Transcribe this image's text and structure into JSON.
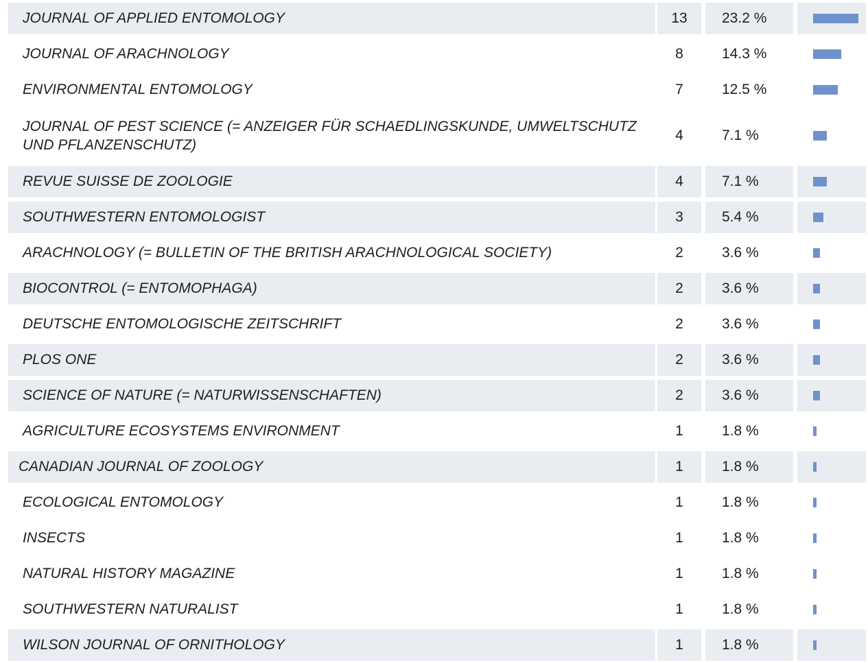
{
  "table": {
    "rows": [
      {
        "journal": "JOURNAL OF APPLIED ENTOMOLOGY",
        "count": 13,
        "percent": "23.2 %"
      },
      {
        "journal": "JOURNAL OF ARACHNOLOGY",
        "count": 8,
        "percent": "14.3 %"
      },
      {
        "journal": "ENVIRONMENTAL ENTOMOLOGY",
        "count": 7,
        "percent": "12.5 %"
      },
      {
        "journal": "JOURNAL OF PEST SCIENCE  (= ANZEIGER FÜR SCHAEDLINGSKUNDE, UMWELTSCHUTZ UND PFLANZENSCHUTZ)",
        "count": 4,
        "percent": "7.1 %"
      },
      {
        "journal": "REVUE SUISSE DE ZOOLOGIE",
        "count": 4,
        "percent": "7.1 %"
      },
      {
        "journal": "SOUTHWESTERN ENTOMOLOGIST",
        "count": 3,
        "percent": "5.4 %"
      },
      {
        "journal": "ARACHNOLOGY  (= BULLETIN OF THE BRITISH ARACHNOLOGICAL SOCIETY)",
        "count": 2,
        "percent": "3.6 %"
      },
      {
        "journal": "BIOCONTROL  (= ENTOMOPHAGA)",
        "count": 2,
        "percent": "3.6 %"
      },
      {
        "journal": "DEUTSCHE ENTOMOLOGISCHE ZEITSCHRIFT",
        "count": 2,
        "percent": "3.6 %"
      },
      {
        "journal": "PLOS ONE",
        "count": 2,
        "percent": "3.6 %"
      },
      {
        "journal": "SCIENCE OF NATURE  (= NATURWISSENSCHAFTEN)",
        "count": 2,
        "percent": "3.6 %"
      },
      {
        "journal": "AGRICULTURE ECOSYSTEMS ENVIRONMENT",
        "count": 1,
        "percent": "1.8 %"
      },
      {
        "journal": "CANADIAN JOURNAL OF ZOOLOGY",
        "count": 1,
        "percent": "1.8 %"
      },
      {
        "journal": "ECOLOGICAL ENTOMOLOGY",
        "count": 1,
        "percent": "1.8 %"
      },
      {
        "journal": "INSECTS",
        "count": 1,
        "percent": "1.8 %"
      },
      {
        "journal": "NATURAL HISTORY MAGAZINE",
        "count": 1,
        "percent": "1.8 %"
      },
      {
        "journal": "SOUTHWESTERN NATURALIST",
        "count": 1,
        "percent": "1.8 %"
      },
      {
        "journal": "WILSON JOURNAL OF ORNITHOLOGY",
        "count": 1,
        "percent": "1.8 %"
      }
    ]
  }
}
